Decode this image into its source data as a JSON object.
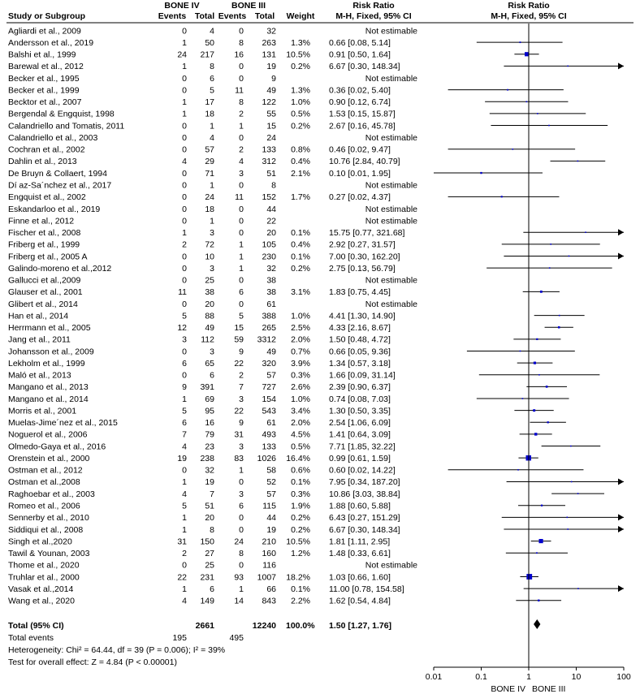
{
  "chart_data": {
    "type": "forest",
    "groups": {
      "experimental": "BONE IV",
      "control": "BONE III"
    },
    "headers": {
      "study": "Study or Subgroup",
      "events": "Events",
      "total": "Total",
      "weight": "Weight",
      "rr_line1": "Risk Ratio",
      "rr_line2": "M-H, Fixed, 95% CI",
      "plot_line1": "Risk Ratio",
      "plot_line2": "M-H, Fixed, 95% CI"
    },
    "studies": [
      {
        "name": "Agliardi et al., 2009",
        "e1": "0",
        "n1": "4",
        "e2": "0",
        "n2": "32",
        "weight": "",
        "ci_text": "Not estimable",
        "rr": null,
        "lo": null,
        "hi": null,
        "w": null
      },
      {
        "name": "Andersson et al., 2019",
        "e1": "1",
        "n1": "50",
        "e2": "8",
        "n2": "263",
        "weight": "1.3%",
        "ci_text": "0.66 [0.08, 5.14]",
        "rr": 0.66,
        "lo": 0.08,
        "hi": 5.14,
        "w": 1.3
      },
      {
        "name": "Balshi et al., 1999",
        "e1": "24",
        "n1": "217",
        "e2": "16",
        "n2": "131",
        "weight": "10.5%",
        "ci_text": "0.91 [0.50, 1.64]",
        "rr": 0.91,
        "lo": 0.5,
        "hi": 1.64,
        "w": 10.5
      },
      {
        "name": "Barewal et al., 2012",
        "e1": "1",
        "n1": "8",
        "e2": "0",
        "n2": "19",
        "weight": "0.2%",
        "ci_text": "6.67 [0.30, 148.34]",
        "rr": 6.67,
        "lo": 0.3,
        "hi": 148.34,
        "w": 0.2
      },
      {
        "name": "Becker et al., 1995",
        "e1": "0",
        "n1": "6",
        "e2": "0",
        "n2": "9",
        "weight": "",
        "ci_text": "Not estimable",
        "rr": null,
        "lo": null,
        "hi": null,
        "w": null
      },
      {
        "name": "Becker et al., 1999",
        "e1": "0",
        "n1": "5",
        "e2": "11",
        "n2": "49",
        "weight": "1.3%",
        "ci_text": "0.36 [0.02, 5.40]",
        "rr": 0.36,
        "lo": 0.02,
        "hi": 5.4,
        "w": 1.3
      },
      {
        "name": "Becktor et al., 2007",
        "e1": "1",
        "n1": "17",
        "e2": "8",
        "n2": "122",
        "weight": "1.0%",
        "ci_text": "0.90 [0.12, 6.74]",
        "rr": 0.9,
        "lo": 0.12,
        "hi": 6.74,
        "w": 1.0
      },
      {
        "name": "Bergendal & Engquist, 1998",
        "e1": "1",
        "n1": "18",
        "e2": "2",
        "n2": "55",
        "weight": "0.5%",
        "ci_text": "1.53 [0.15, 15.87]",
        "rr": 1.53,
        "lo": 0.15,
        "hi": 15.87,
        "w": 0.5
      },
      {
        "name": "Calandriello and Tomatis, 2011",
        "e1": "0",
        "n1": "1",
        "e2": "1",
        "n2": "15",
        "weight": "0.2%",
        "ci_text": "2.67 [0.16, 45.78]",
        "rr": 2.67,
        "lo": 0.16,
        "hi": 45.78,
        "w": 0.2
      },
      {
        "name": "Calandriello et al., 2003",
        "e1": "0",
        "n1": "4",
        "e2": "0",
        "n2": "24",
        "weight": "",
        "ci_text": "Not estimable",
        "rr": null,
        "lo": null,
        "hi": null,
        "w": null
      },
      {
        "name": "Cochran et al., 2002",
        "e1": "0",
        "n1": "57",
        "e2": "2",
        "n2": "133",
        "weight": "0.8%",
        "ci_text": "0.46 [0.02, 9.47]",
        "rr": 0.46,
        "lo": 0.02,
        "hi": 9.47,
        "w": 0.8
      },
      {
        "name": "Dahlin et al., 2013",
        "e1": "4",
        "n1": "29",
        "e2": "4",
        "n2": "312",
        "weight": "0.4%",
        "ci_text": "10.76 [2.84, 40.79]",
        "rr": 10.76,
        "lo": 2.84,
        "hi": 40.79,
        "w": 0.4
      },
      {
        "name": "De Bruyn & Collaert, 1994",
        "e1": "0",
        "n1": "71",
        "e2": "3",
        "n2": "51",
        "weight": "2.1%",
        "ci_text": "0.10 [0.01, 1.95]",
        "rr": 0.1,
        "lo": 0.01,
        "hi": 1.95,
        "w": 2.1
      },
      {
        "name": "Dí az-Sa´nchez et al., 2017",
        "e1": "0",
        "n1": "1",
        "e2": "0",
        "n2": "8",
        "weight": "",
        "ci_text": "Not estimable",
        "rr": null,
        "lo": null,
        "hi": null,
        "w": null
      },
      {
        "name": "Engquist et al., 2002",
        "e1": "0",
        "n1": "24",
        "e2": "11",
        "n2": "152",
        "weight": "1.7%",
        "ci_text": "0.27 [0.02, 4.37]",
        "rr": 0.27,
        "lo": 0.02,
        "hi": 4.37,
        "w": 1.7
      },
      {
        "name": "Eskandarloo et al., 2019",
        "e1": "0",
        "n1": "18",
        "e2": "0",
        "n2": "44",
        "weight": "",
        "ci_text": "Not estimable",
        "rr": null,
        "lo": null,
        "hi": null,
        "w": null
      },
      {
        "name": "Finne et al., 2012",
        "e1": "0",
        "n1": "1",
        "e2": "0",
        "n2": "22",
        "weight": "",
        "ci_text": "Not estimable",
        "rr": null,
        "lo": null,
        "hi": null,
        "w": null
      },
      {
        "name": "Fischer et al., 2008",
        "e1": "1",
        "n1": "3",
        "e2": "0",
        "n2": "20",
        "weight": "0.1%",
        "ci_text": "15.75 [0.77, 321.68]",
        "rr": 15.75,
        "lo": 0.77,
        "hi": 321.68,
        "w": 0.1
      },
      {
        "name": "Friberg et al., 1999",
        "e1": "2",
        "n1": "72",
        "e2": "1",
        "n2": "105",
        "weight": "0.4%",
        "ci_text": "2.92 [0.27, 31.57]",
        "rr": 2.92,
        "lo": 0.27,
        "hi": 31.57,
        "w": 0.4
      },
      {
        "name": "Friberg et al., 2005 A",
        "e1": "0",
        "n1": "10",
        "e2": "1",
        "n2": "230",
        "weight": "0.1%",
        "ci_text": "7.00 [0.30, 162.20]",
        "rr": 7.0,
        "lo": 0.3,
        "hi": 162.2,
        "w": 0.1
      },
      {
        "name": "Galindo-moreno et al.,2012",
        "e1": "0",
        "n1": "3",
        "e2": "1",
        "n2": "32",
        "weight": "0.2%",
        "ci_text": "2.75 [0.13, 56.79]",
        "rr": 2.75,
        "lo": 0.13,
        "hi": 56.79,
        "w": 0.2
      },
      {
        "name": "Gallucci et al.,2009",
        "e1": "0",
        "n1": "25",
        "e2": "0",
        "n2": "38",
        "weight": "",
        "ci_text": "Not estimable",
        "rr": null,
        "lo": null,
        "hi": null,
        "w": null
      },
      {
        "name": "Glauser et al., 2001",
        "e1": "11",
        "n1": "38",
        "e2": "6",
        "n2": "38",
        "weight": "3.1%",
        "ci_text": "1.83 [0.75, 4.45]",
        "rr": 1.83,
        "lo": 0.75,
        "hi": 4.45,
        "w": 3.1
      },
      {
        "name": "Glibert et al., 2014",
        "e1": "0",
        "n1": "20",
        "e2": "0",
        "n2": "61",
        "weight": "",
        "ci_text": "Not estimable",
        "rr": null,
        "lo": null,
        "hi": null,
        "w": null
      },
      {
        "name": "Han et al., 2014",
        "e1": "5",
        "n1": "88",
        "e2": "5",
        "n2": "388",
        "weight": "1.0%",
        "ci_text": "4.41 [1.30, 14.90]",
        "rr": 4.41,
        "lo": 1.3,
        "hi": 14.9,
        "w": 1.0
      },
      {
        "name": "Herrmann et al., 2005",
        "e1": "12",
        "n1": "49",
        "e2": "15",
        "n2": "265",
        "weight": "2.5%",
        "ci_text": "4.33 [2.16, 8.67]",
        "rr": 4.33,
        "lo": 2.16,
        "hi": 8.67,
        "w": 2.5
      },
      {
        "name": "Jang et al., 2011",
        "e1": "3",
        "n1": "112",
        "e2": "59",
        "n2": "3312",
        "weight": "2.0%",
        "ci_text": "1.50 [0.48, 4.72]",
        "rr": 1.5,
        "lo": 0.48,
        "hi": 4.72,
        "w": 2.0
      },
      {
        "name": "Johansson et al., 2009",
        "e1": "0",
        "n1": "3",
        "e2": "9",
        "n2": "49",
        "weight": "0.7%",
        "ci_text": "0.66 [0.05, 9.36]",
        "rr": 0.66,
        "lo": 0.05,
        "hi": 9.36,
        "w": 0.7
      },
      {
        "name": "Lekholm et al., 1999",
        "e1": "6",
        "n1": "65",
        "e2": "22",
        "n2": "320",
        "weight": "3.9%",
        "ci_text": "1.34 [0.57, 3.18]",
        "rr": 1.34,
        "lo": 0.57,
        "hi": 3.18,
        "w": 3.9
      },
      {
        "name": "Maló et al., 2013",
        "e1": "0",
        "n1": "6",
        "e2": "2",
        "n2": "57",
        "weight": "0.3%",
        "ci_text": "1.66 [0.09, 31.14]",
        "rr": 1.66,
        "lo": 0.09,
        "hi": 31.14,
        "w": 0.3
      },
      {
        "name": "Mangano et al., 2013",
        "e1": "9",
        "n1": "391",
        "e2": "7",
        "n2": "727",
        "weight": "2.6%",
        "ci_text": "2.39 [0.90, 6.37]",
        "rr": 2.39,
        "lo": 0.9,
        "hi": 6.37,
        "w": 2.6
      },
      {
        "name": "Mangano et al., 2014",
        "e1": "1",
        "n1": "69",
        "e2": "3",
        "n2": "154",
        "weight": "1.0%",
        "ci_text": "0.74 [0.08, 7.03]",
        "rr": 0.74,
        "lo": 0.08,
        "hi": 7.03,
        "w": 1.0
      },
      {
        "name": "Morris et al., 2001",
        "e1": "5",
        "n1": "95",
        "e2": "22",
        "n2": "543",
        "weight": "3.4%",
        "ci_text": "1.30 [0.50, 3.35]",
        "rr": 1.3,
        "lo": 0.5,
        "hi": 3.35,
        "w": 3.4
      },
      {
        "name": "Muelas-Jime´nez et al., 2015",
        "e1": "6",
        "n1": "16",
        "e2": "9",
        "n2": "61",
        "weight": "2.0%",
        "ci_text": "2.54 [1.06, 6.09]",
        "rr": 2.54,
        "lo": 1.06,
        "hi": 6.09,
        "w": 2.0
      },
      {
        "name": "Noguerol et al., 2006",
        "e1": "7",
        "n1": "79",
        "e2": "31",
        "n2": "493",
        "weight": "4.5%",
        "ci_text": "1.41 [0.64, 3.09]",
        "rr": 1.41,
        "lo": 0.64,
        "hi": 3.09,
        "w": 4.5
      },
      {
        "name": "Olmedo-Gaya et al., 2016",
        "e1": "4",
        "n1": "23",
        "e2": "3",
        "n2": "133",
        "weight": "0.5%",
        "ci_text": "7.71 [1.85, 32.22]",
        "rr": 7.71,
        "lo": 1.85,
        "hi": 32.22,
        "w": 0.5
      },
      {
        "name": "Orenstein et al., 2000",
        "e1": "19",
        "n1": "238",
        "e2": "83",
        "n2": "1026",
        "weight": "16.4%",
        "ci_text": "0.99 [0.61, 1.59]",
        "rr": 0.99,
        "lo": 0.61,
        "hi": 1.59,
        "w": 16.4
      },
      {
        "name": "Ostman et al., 2012",
        "e1": "0",
        "n1": "32",
        "e2": "1",
        "n2": "58",
        "weight": "0.6%",
        "ci_text": "0.60 [0.02, 14.22]",
        "rr": 0.6,
        "lo": 0.02,
        "hi": 14.22,
        "w": 0.6
      },
      {
        "name": "Ostman et al.,2008",
        "e1": "1",
        "n1": "19",
        "e2": "0",
        "n2": "52",
        "weight": "0.1%",
        "ci_text": "7.95 [0.34, 187.20]",
        "rr": 7.95,
        "lo": 0.34,
        "hi": 187.2,
        "w": 0.1
      },
      {
        "name": "Raghoebar et al., 2003",
        "e1": "4",
        "n1": "7",
        "e2": "3",
        "n2": "57",
        "weight": "0.3%",
        "ci_text": "10.86 [3.03, 38.84]",
        "rr": 10.86,
        "lo": 3.03,
        "hi": 38.84,
        "w": 0.3
      },
      {
        "name": "Romeo et al., 2006",
        "e1": "5",
        "n1": "51",
        "e2": "6",
        "n2": "115",
        "weight": "1.9%",
        "ci_text": "1.88 [0.60, 5.88]",
        "rr": 1.88,
        "lo": 0.6,
        "hi": 5.88,
        "w": 1.9
      },
      {
        "name": "Sennerby et al., 2010",
        "e1": "1",
        "n1": "20",
        "e2": "0",
        "n2": "44",
        "weight": "0.2%",
        "ci_text": "6.43 [0.27, 151.29]",
        "rr": 6.43,
        "lo": 0.27,
        "hi": 151.29,
        "w": 0.2
      },
      {
        "name": "Siddiqui et al., 2008",
        "e1": "1",
        "n1": "8",
        "e2": "0",
        "n2": "19",
        "weight": "0.2%",
        "ci_text": "6.67 [0.30, 148.34]",
        "rr": 6.67,
        "lo": 0.3,
        "hi": 148.34,
        "w": 0.2
      },
      {
        "name": "Singh et al.,2020",
        "e1": "31",
        "n1": "150",
        "e2": "24",
        "n2": "210",
        "weight": "10.5%",
        "ci_text": "1.81 [1.11, 2.95]",
        "rr": 1.81,
        "lo": 1.11,
        "hi": 2.95,
        "w": 10.5
      },
      {
        "name": "Tawil & Younan, 2003",
        "e1": "2",
        "n1": "27",
        "e2": "8",
        "n2": "160",
        "weight": "1.2%",
        "ci_text": "1.48 [0.33, 6.61]",
        "rr": 1.48,
        "lo": 0.33,
        "hi": 6.61,
        "w": 1.2
      },
      {
        "name": "Thome et al., 2020",
        "e1": "0",
        "n1": "25",
        "e2": "0",
        "n2": "116",
        "weight": "",
        "ci_text": "Not estimable",
        "rr": null,
        "lo": null,
        "hi": null,
        "w": null
      },
      {
        "name": "Truhlar et al., 2000",
        "e1": "22",
        "n1": "231",
        "e2": "93",
        "n2": "1007",
        "weight": "18.2%",
        "ci_text": "1.03 [0.66, 1.60]",
        "rr": 1.03,
        "lo": 0.66,
        "hi": 1.6,
        "w": 18.2
      },
      {
        "name": "Vasak et al.,2014",
        "e1": "1",
        "n1": "6",
        "e2": "1",
        "n2": "66",
        "weight": "0.1%",
        "ci_text": "11.00 [0.78, 154.58]",
        "rr": 11.0,
        "lo": 0.78,
        "hi": 154.58,
        "w": 0.1
      },
      {
        "name": "Wang et al., 2020",
        "e1": "4",
        "n1": "149",
        "e2": "14",
        "n2": "843",
        "weight": "2.2%",
        "ci_text": "1.62 [0.54, 4.84]",
        "rr": 1.62,
        "lo": 0.54,
        "hi": 4.84,
        "w": 2.2
      }
    ],
    "total": {
      "label": "Total (95% CI)",
      "n1": "2661",
      "n2": "12240",
      "weight": "100.0%",
      "ci_text": "1.50 [1.27, 1.76]",
      "rr": 1.5,
      "lo": 1.27,
      "hi": 1.76
    },
    "total_events": {
      "label": "Total events",
      "e1": "195",
      "e2": "495"
    },
    "heterogeneity": "Heterogeneity: Chi² = 64.44, df = 39 (P = 0.006); I² = 39%",
    "overall_effect": "Test for overall effect: Z = 4.84 (P < 0.00001)",
    "axis": {
      "scale": "log",
      "range": [
        0.01,
        100
      ],
      "ticks": [
        0.01,
        0.1,
        1,
        10,
        100
      ],
      "tick_labels": [
        "0.01",
        "0.1",
        "1",
        "10",
        "100"
      ],
      "favours_left": "BONE IV",
      "favours_right": "BONE III"
    },
    "colors": {
      "marker": "#0000cc",
      "line": "#000000"
    }
  }
}
